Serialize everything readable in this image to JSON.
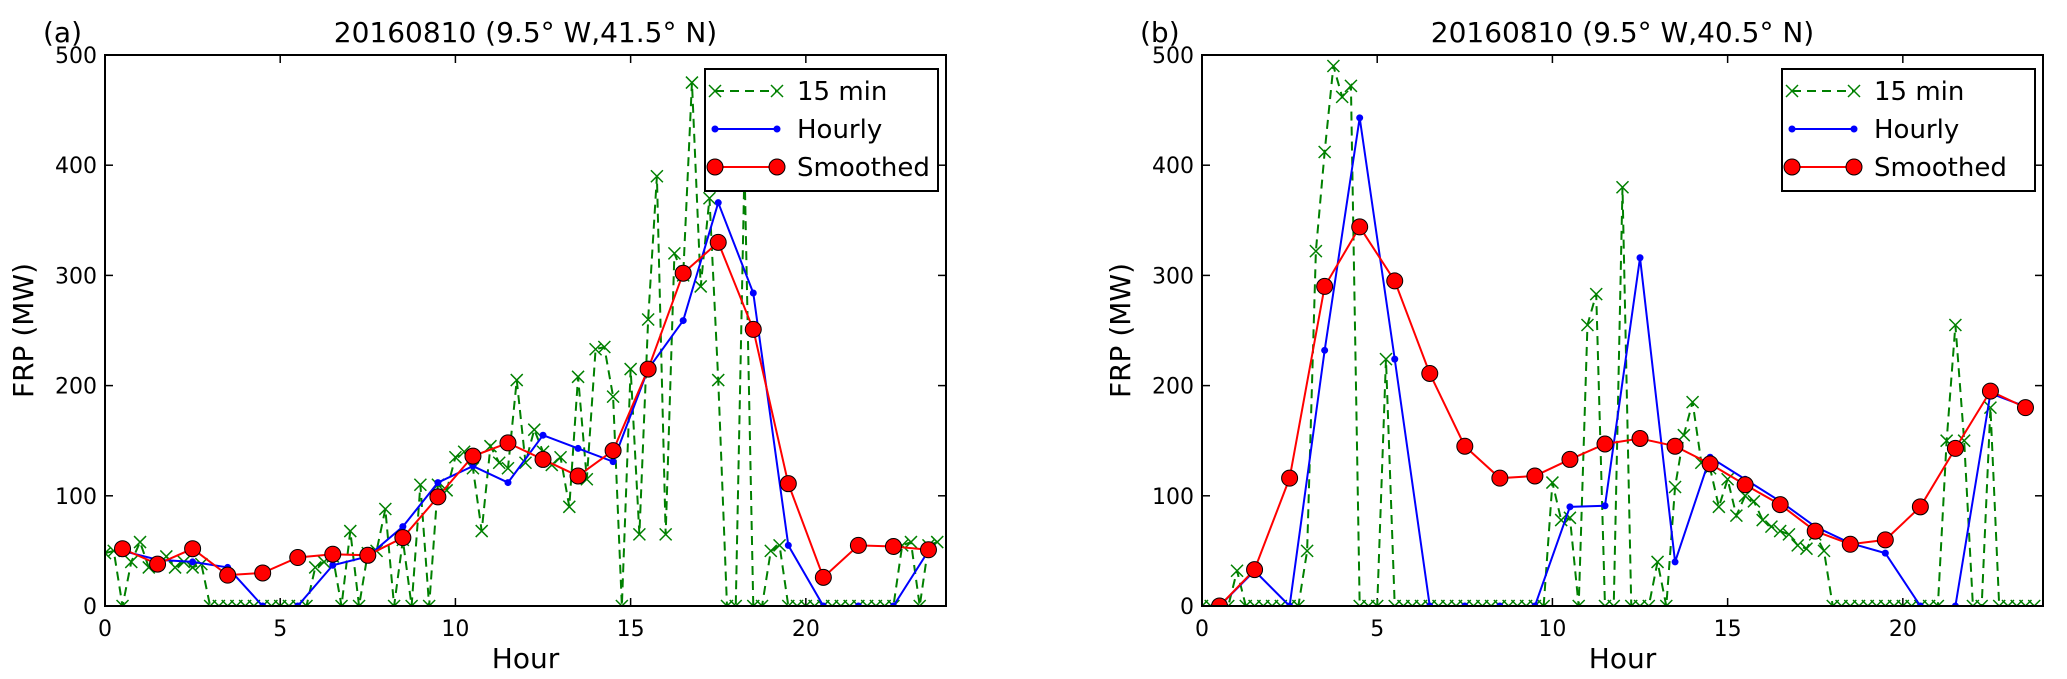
{
  "chart_data": [
    {
      "type": "line",
      "panel_label": "(a)",
      "title": "20160810 (9.5° W,41.5° N)",
      "xlabel": "Hour",
      "ylabel": "FRP (MW)",
      "xlim": [
        0,
        24
      ],
      "ylim": [
        0,
        500
      ],
      "xticks": [
        "0",
        "5",
        "10",
        "15",
        "20"
      ],
      "yticks": [
        "0",
        "100",
        "200",
        "300",
        "400",
        "500"
      ],
      "legend_position": "top-right",
      "series": [
        {
          "name": "15 min",
          "style": "dashed-x",
          "color": "#008000",
          "x_start": 0,
          "x_step": 0.25,
          "values": [
            48,
            50,
            0,
            40,
            58,
            35,
            38,
            45,
            35,
            40,
            35,
            38,
            0,
            0,
            0,
            0,
            0,
            0,
            0,
            0,
            0,
            0,
            0,
            0,
            35,
            40,
            45,
            0,
            68,
            0,
            48,
            50,
            88,
            0,
            60,
            0,
            110,
            0,
            110,
            105,
            135,
            140,
            125,
            68,
            145,
            130,
            125,
            205,
            130,
            160,
            140,
            128,
            135,
            90,
            208,
            115,
            233,
            235,
            190,
            0,
            215,
            65,
            260,
            390,
            65,
            320,
            300,
            475,
            290,
            370,
            205,
            0,
            0,
            400,
            0,
            0,
            50,
            55,
            0,
            0,
            0,
            0,
            0,
            0,
            0,
            0,
            0,
            0,
            0,
            0,
            0,
            55,
            58,
            0,
            55,
            58
          ]
        },
        {
          "name": "Hourly",
          "style": "solid-dot",
          "color": "#0000ff",
          "x_start": 0.5,
          "x_step": 1,
          "values": [
            50,
            42,
            40,
            35,
            0,
            0,
            37,
            45,
            72,
            112,
            127,
            112,
            155,
            143,
            131,
            215,
            259,
            366,
            284,
            55,
            0,
            0,
            0,
            50
          ]
        },
        {
          "name": "Smoothed",
          "style": "solid-circle",
          "color": "#ff0000",
          "x_start": 0.5,
          "x_step": 1,
          "values": [
            52,
            38,
            52,
            28,
            30,
            44,
            47,
            46,
            62,
            99,
            136,
            148,
            133,
            118,
            141,
            215,
            302,
            330,
            251,
            111,
            26,
            55,
            54,
            51
          ]
        }
      ]
    },
    {
      "type": "line",
      "panel_label": "(b)",
      "title": "20160810 (9.5° W,40.5° N)",
      "xlabel": "Hour",
      "ylabel": "FRP (MW)",
      "xlim": [
        0,
        24
      ],
      "ylim": [
        0,
        500
      ],
      "xticks": [
        "0",
        "5",
        "10",
        "15",
        "20"
      ],
      "yticks": [
        "0",
        "100",
        "200",
        "300",
        "400",
        "500"
      ],
      "legend_position": "top-right",
      "series": [
        {
          "name": "15 min",
          "style": "dashed-x",
          "color": "#008000",
          "x_start": 0,
          "x_step": 0.25,
          "values": [
            0,
            0,
            0,
            0,
            32,
            0,
            0,
            0,
            0,
            0,
            0,
            0,
            50,
            322,
            412,
            490,
            462,
            472,
            0,
            0,
            0,
            224,
            0,
            0,
            0,
            0,
            0,
            0,
            0,
            0,
            0,
            0,
            0,
            0,
            0,
            0,
            0,
            0,
            0,
            0,
            112,
            78,
            80,
            0,
            255,
            283,
            0,
            0,
            380,
            0,
            0,
            0,
            40,
            0,
            108,
            155,
            185,
            130,
            125,
            90,
            115,
            82,
            100,
            95,
            78,
            72,
            68,
            65,
            55,
            52,
            65,
            50,
            0,
            0,
            0,
            0,
            0,
            0,
            0,
            0,
            0,
            0,
            0,
            0,
            0,
            150,
            255,
            150,
            0,
            0,
            180,
            0,
            0,
            0,
            0,
            0
          ]
        },
        {
          "name": "Hourly",
          "style": "solid-dot",
          "color": "#0000ff",
          "x_start": 0.5,
          "x_step": 1,
          "values": [
            0,
            32,
            0,
            232,
            443,
            224,
            0,
            0,
            0,
            0,
            90,
            91,
            316,
            40,
            135,
            115,
            95,
            72,
            57,
            48,
            0,
            0,
            193,
            181
          ]
        },
        {
          "name": "Smoothed",
          "style": "solid-circle",
          "color": "#ff0000",
          "x_start": 0.5,
          "x_step": 1,
          "values": [
            0,
            33,
            116,
            290,
            344,
            295,
            211,
            145,
            116,
            118,
            133,
            147,
            152,
            145,
            129,
            110,
            92,
            68,
            56,
            60,
            90,
            143,
            195,
            180
          ]
        }
      ]
    }
  ]
}
